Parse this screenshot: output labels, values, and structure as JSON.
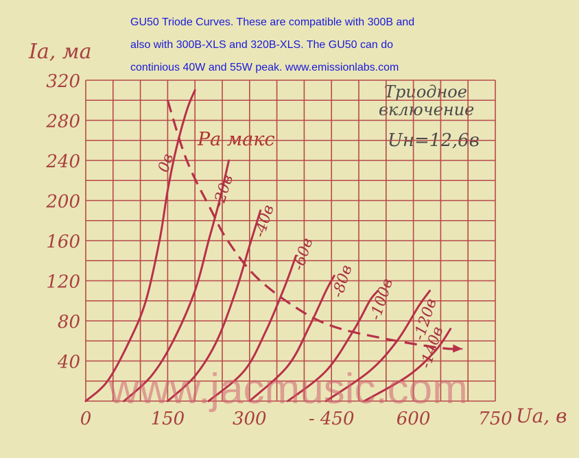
{
  "caption": {
    "line1": "GU50 Triode Curves. These are compatible with 300B and",
    "line2": "also with 300B-XLS and 320B-XLS.  The GU50 can do",
    "line3": "continious 40W and 55W peak.    www.emissionlabs.com"
  },
  "watermark": "www.jacmusic.com",
  "chart_data": {
    "type": "line",
    "ylabel": "Iа, ма",
    "xlabel": "Uа, в",
    "xlim": [
      0,
      750
    ],
    "ylim": [
      0,
      320
    ],
    "x_ticks": [
      {
        "value": 0,
        "label": "0"
      },
      {
        "value": 150,
        "label": "150"
      },
      {
        "value": 300,
        "label": "300"
      },
      {
        "value": 450,
        "label": "- 450"
      },
      {
        "value": 600,
        "label": "600"
      },
      {
        "value": 750,
        "label": "750"
      }
    ],
    "y_ticks": [
      {
        "value": 40,
        "label": "40"
      },
      {
        "value": 80,
        "label": "80"
      },
      {
        "value": 120,
        "label": "120"
      },
      {
        "value": 160,
        "label": "160"
      },
      {
        "value": 200,
        "label": "200"
      },
      {
        "value": 240,
        "label": "240"
      },
      {
        "value": 280,
        "label": "280"
      },
      {
        "value": 320,
        "label": "320"
      }
    ],
    "grid": true,
    "annotations": {
      "mode": "Триодное включение",
      "mode_line1": "Триодное",
      "mode_line2": "включение",
      "heater": "Uн=12,6в",
      "pmax": "Pа макс"
    },
    "series": [
      {
        "name": "0в",
        "label_at": [
          155,
          236
        ],
        "points": [
          [
            0,
            0
          ],
          [
            40,
            20
          ],
          [
            80,
            60
          ],
          [
            110,
            100
          ],
          [
            135,
            160
          ],
          [
            150,
            210
          ],
          [
            165,
            250
          ],
          [
            185,
            290
          ],
          [
            200,
            310
          ]
        ]
      },
      {
        "name": "-20в",
        "label_at": [
          260,
          208
        ],
        "points": [
          [
            70,
            0
          ],
          [
            120,
            25
          ],
          [
            160,
            60
          ],
          [
            200,
            110
          ],
          [
            225,
            160
          ],
          [
            245,
            200
          ],
          [
            262,
            240
          ]
        ]
      },
      {
        "name": "-40в",
        "label_at": [
          335,
          178
        ],
        "points": [
          [
            150,
            0
          ],
          [
            200,
            25
          ],
          [
            240,
            60
          ],
          [
            275,
            110
          ],
          [
            300,
            155
          ],
          [
            320,
            190
          ]
        ]
      },
      {
        "name": "-60в",
        "label_at": [
          406,
          145
        ],
        "points": [
          [
            225,
            0
          ],
          [
            290,
            30
          ],
          [
            330,
            70
          ],
          [
            365,
            115
          ],
          [
            385,
            145
          ]
        ]
      },
      {
        "name": "-80в",
        "label_at": [
          478,
          118
        ],
        "points": [
          [
            300,
            0
          ],
          [
            370,
            35
          ],
          [
            410,
            75
          ],
          [
            440,
            110
          ],
          [
            455,
            125
          ]
        ]
      },
      {
        "name": "-100в",
        "label_at": [
          550,
          100
        ],
        "points": [
          [
            370,
            0
          ],
          [
            440,
            30
          ],
          [
            490,
            70
          ],
          [
            520,
            100
          ],
          [
            535,
            110
          ]
        ]
      },
      {
        "name": "-120в",
        "label_at": [
          630,
          80
        ],
        "points": [
          [
            440,
            0
          ],
          [
            520,
            30
          ],
          [
            570,
            60
          ],
          [
            610,
            95
          ],
          [
            630,
            110
          ]
        ]
      },
      {
        "name": "-140в",
        "label_at": [
          642,
          52
        ],
        "points": [
          [
            510,
            0
          ],
          [
            590,
            25
          ],
          [
            640,
            50
          ],
          [
            668,
            72
          ]
        ]
      }
    ],
    "pmax_curve": [
      [
        150,
        300
      ],
      [
        185,
        240
      ],
      [
        230,
        190
      ],
      [
        260,
        160
      ],
      [
        310,
        125
      ],
      [
        380,
        95
      ],
      [
        450,
        75
      ],
      [
        550,
        62
      ],
      [
        650,
        53
      ],
      [
        690,
        52
      ]
    ]
  }
}
